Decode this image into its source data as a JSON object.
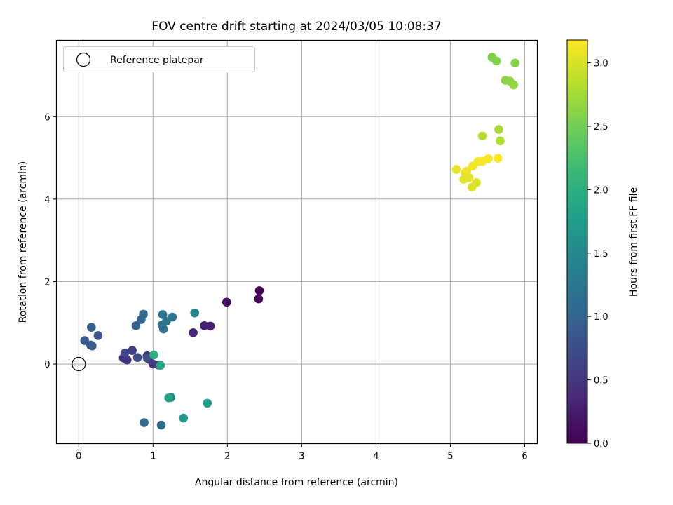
{
  "chart_data": {
    "type": "scatter",
    "title": "FOV centre drift starting at 2024/03/05 10:08:37",
    "xlabel": "Angular distance from reference (arcmin)",
    "ylabel": "Rotation from reference (arcmin)",
    "xlim": [
      -0.3,
      6.17
    ],
    "ylim": [
      -1.93,
      7.85
    ],
    "xticks": [
      0,
      1,
      2,
      3,
      4,
      5,
      6
    ],
    "yticks": [
      0,
      2,
      4,
      6
    ],
    "grid": true,
    "legend": {
      "placement": "upper-left",
      "entries": [
        "Reference platepar"
      ]
    },
    "reference_point": {
      "name": "Reference platepar",
      "x": 0,
      "y": 0
    },
    "colorbar": {
      "label": "Hours from first FF file",
      "range": [
        0.0,
        3.18
      ],
      "ticks": [
        "0.0",
        "0.5",
        "1.0",
        "1.5",
        "2.0",
        "2.5",
        "3.0"
      ],
      "tick_values": [
        0.0,
        0.5,
        1.0,
        1.5,
        2.0,
        2.5,
        3.0
      ],
      "colormap": "viridis"
    },
    "series": [
      {
        "points": [
          {
            "x": 2.43,
            "y": 1.78,
            "c": 0.0
          },
          {
            "x": 2.42,
            "y": 1.58,
            "c": 0.03
          },
          {
            "x": 1.99,
            "y": 1.5,
            "c": 0.08
          },
          {
            "x": 1.77,
            "y": 0.92,
            "c": 0.25
          },
          {
            "x": 1.69,
            "y": 0.93,
            "c": 0.3
          },
          {
            "x": 1.54,
            "y": 0.76,
            "c": 0.35
          },
          {
            "x": 0.92,
            "y": 0.2,
            "c": 0.4
          },
          {
            "x": 0.94,
            "y": 0.12,
            "c": 0.42
          },
          {
            "x": 0.6,
            "y": 0.15,
            "c": 0.45
          },
          {
            "x": 0.65,
            "y": 0.1,
            "c": 0.48
          },
          {
            "x": 1.0,
            "y": 0.0,
            "c": 0.5
          },
          {
            "x": 1.07,
            "y": -0.02,
            "c": 0.55
          },
          {
            "x": 0.72,
            "y": 0.33,
            "c": 0.6
          },
          {
            "x": 0.62,
            "y": 0.27,
            "c": 0.7
          },
          {
            "x": 0.79,
            "y": 0.16,
            "c": 0.75
          },
          {
            "x": 0.92,
            "y": 0.15,
            "c": 0.8
          },
          {
            "x": 0.26,
            "y": 0.69,
            "c": 0.85
          },
          {
            "x": 0.16,
            "y": 0.46,
            "c": 0.88
          },
          {
            "x": 0.08,
            "y": 0.57,
            "c": 0.9
          },
          {
            "x": 0.18,
            "y": 0.44,
            "c": 0.92
          },
          {
            "x": 0.17,
            "y": 0.89,
            "c": 0.95
          },
          {
            "x": 0.77,
            "y": 0.93,
            "c": 1.0
          },
          {
            "x": 0.84,
            "y": 1.08,
            "c": 1.05
          },
          {
            "x": 0.87,
            "y": 1.21,
            "c": 1.08
          },
          {
            "x": 0.88,
            "y": -1.42,
            "c": 1.1
          },
          {
            "x": 1.11,
            "y": -1.48,
            "c": 1.12
          },
          {
            "x": 1.12,
            "y": 0.95,
            "c": 1.15
          },
          {
            "x": 1.14,
            "y": 0.85,
            "c": 1.18
          },
          {
            "x": 1.13,
            "y": 1.2,
            "c": 1.2
          },
          {
            "x": 1.18,
            "y": 1.04,
            "c": 1.22
          },
          {
            "x": 1.26,
            "y": 1.14,
            "c": 1.25
          },
          {
            "x": 1.24,
            "y": -0.81,
            "c": 1.4
          },
          {
            "x": 1.56,
            "y": 1.24,
            "c": 1.45
          },
          {
            "x": 1.41,
            "y": -1.31,
            "c": 1.7
          },
          {
            "x": 1.73,
            "y": -0.95,
            "c": 1.8
          },
          {
            "x": 1.21,
            "y": -0.82,
            "c": 1.85
          },
          {
            "x": 1.1,
            "y": -0.03,
            "c": 1.9
          },
          {
            "x": 1.01,
            "y": 0.22,
            "c": 2.0
          },
          {
            "x": 5.56,
            "y": 7.44,
            "c": 2.55
          },
          {
            "x": 5.62,
            "y": 7.35,
            "c": 2.58
          },
          {
            "x": 5.87,
            "y": 7.3,
            "c": 2.6
          },
          {
            "x": 5.74,
            "y": 6.88,
            "c": 2.62
          },
          {
            "x": 5.8,
            "y": 6.86,
            "c": 2.64
          },
          {
            "x": 5.85,
            "y": 6.77,
            "c": 2.66
          },
          {
            "x": 5.65,
            "y": 5.69,
            "c": 2.75
          },
          {
            "x": 5.67,
            "y": 5.41,
            "c": 2.8
          },
          {
            "x": 5.43,
            "y": 5.53,
            "c": 2.82
          },
          {
            "x": 5.35,
            "y": 4.4,
            "c": 3.0
          },
          {
            "x": 5.29,
            "y": 4.29,
            "c": 3.02
          },
          {
            "x": 5.18,
            "y": 4.48,
            "c": 3.04
          },
          {
            "x": 5.25,
            "y": 4.52,
            "c": 3.05
          },
          {
            "x": 5.2,
            "y": 4.64,
            "c": 3.07
          },
          {
            "x": 5.08,
            "y": 4.72,
            "c": 3.08
          },
          {
            "x": 5.22,
            "y": 4.68,
            "c": 3.1
          },
          {
            "x": 5.3,
            "y": 4.8,
            "c": 3.12
          },
          {
            "x": 5.37,
            "y": 4.91,
            "c": 3.13
          },
          {
            "x": 5.43,
            "y": 4.92,
            "c": 3.14
          },
          {
            "x": 5.51,
            "y": 4.98,
            "c": 3.16
          },
          {
            "x": 5.64,
            "y": 4.99,
            "c": 3.18
          }
        ]
      }
    ]
  }
}
